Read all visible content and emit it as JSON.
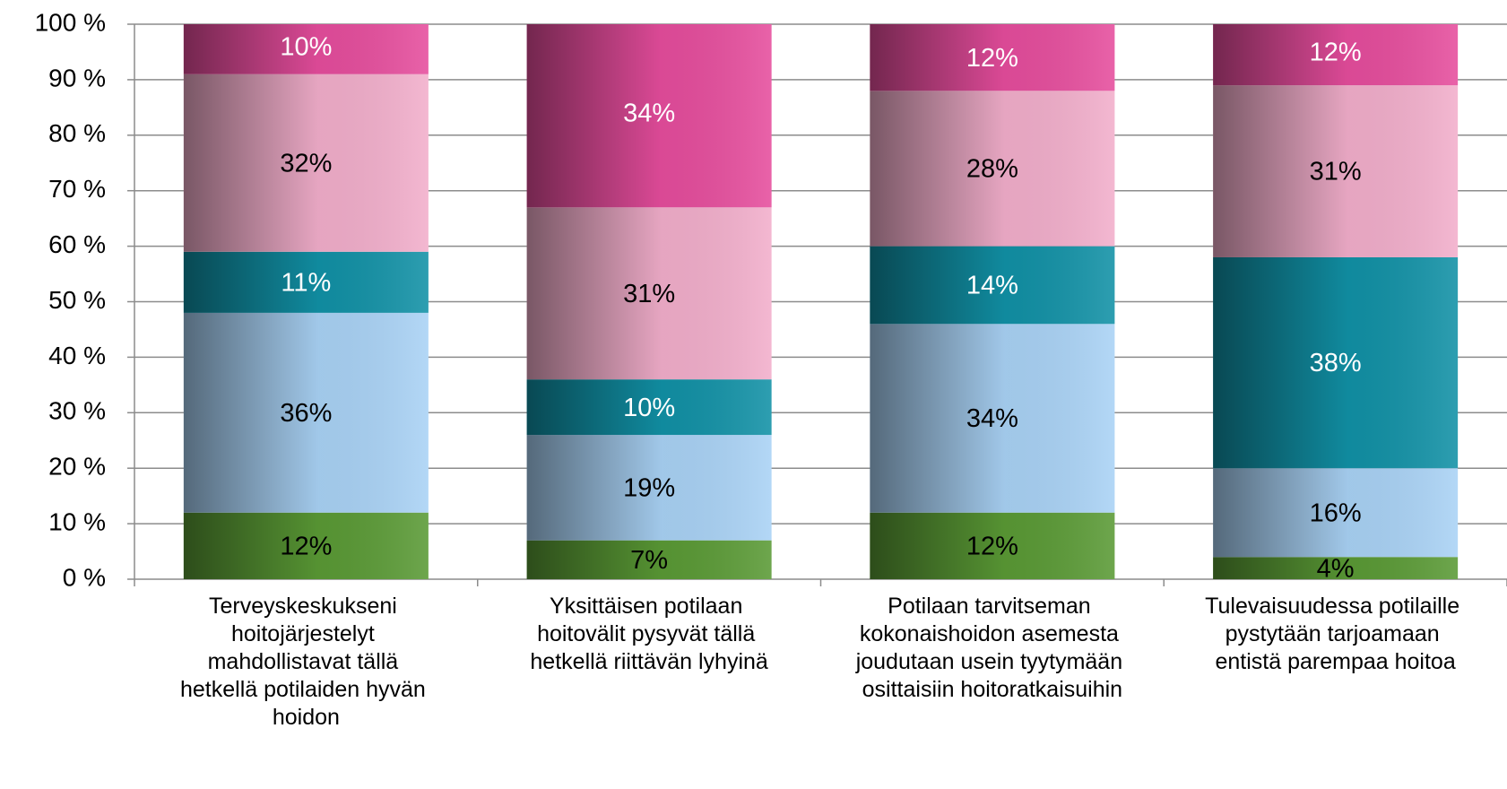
{
  "chart_data": {
    "type": "stacked_bar",
    "categories": [
      "Terveyskeskukseni hoitojärjestelyt mahdollistavat tällä hetkellä potilaiden hyvän hoidon",
      "Yksittäisen potilaan hoitovälit pysyvät tällä hetkellä riittävän lyhyinä",
      "Potilaan tarvitseman kokonaishoidon asemesta joudutaan usein tyytymään osittaisiin hoitoratkaisuihin",
      "Tulevaisuudessa potilaille pystytään tarjoamaan entistä parempaa hoitoa"
    ],
    "series": [
      {
        "color": "#5a9a35",
        "label_color": "#000000",
        "values": [
          12,
          7,
          12,
          4
        ],
        "value_labels": [
          "12%",
          "7%",
          "12%",
          "4%"
        ]
      },
      {
        "color": "#a9d2f5",
        "label_color": "#000000",
        "values": [
          36,
          19,
          34,
          16
        ],
        "value_labels": [
          "36%",
          "19%",
          "34%",
          "16%"
        ]
      },
      {
        "color": "#1191a6",
        "label_color": "#ffffff",
        "values": [
          11,
          10,
          14,
          38
        ],
        "value_labels": [
          "11%",
          "10%",
          "14%",
          "38%"
        ]
      },
      {
        "color": "#f2aecb",
        "label_color": "#000000",
        "values": [
          32,
          31,
          28,
          31
        ],
        "value_labels": [
          "32%",
          "31%",
          "28%",
          "31%"
        ]
      },
      {
        "color": "#e64d9d",
        "label_color": "#ffffff",
        "values": [
          10,
          34,
          12,
          12
        ],
        "value_labels": [
          "10%",
          "34%",
          "12%",
          "12%"
        ]
      }
    ],
    "ylim": [
      0,
      100
    ],
    "yticks": [
      {
        "value": 0,
        "label": "0 %"
      },
      {
        "value": 10,
        "label": "10 %"
      },
      {
        "value": 20,
        "label": "20 %"
      },
      {
        "value": 30,
        "label": "30 %"
      },
      {
        "value": 40,
        "label": "40 %"
      },
      {
        "value": 50,
        "label": "50 %"
      },
      {
        "value": 60,
        "label": "60 %"
      },
      {
        "value": 70,
        "label": "70 %"
      },
      {
        "value": 80,
        "label": "80 %"
      },
      {
        "value": 90,
        "label": "90 %"
      },
      {
        "value": 100,
        "label": "100 %"
      }
    ],
    "grid": true
  }
}
